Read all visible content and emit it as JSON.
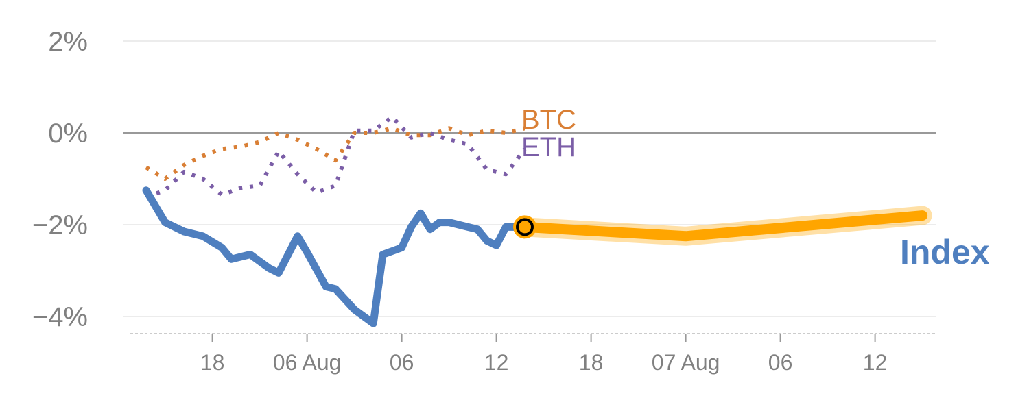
{
  "chart_data": {
    "type": "line",
    "title": "",
    "xlabel": "",
    "ylabel": "",
    "ylim": [
      -4.35,
      2.15
    ],
    "y_ticks": [
      {
        "value": 2,
        "label": "2%"
      },
      {
        "value": 0,
        "label": "0%"
      },
      {
        "value": -2,
        "label": "−2%"
      },
      {
        "value": -4,
        "label": "−4%"
      }
    ],
    "x_ticks": [
      {
        "x": 7,
        "label": "18"
      },
      {
        "x": 17,
        "label": "06 Aug"
      },
      {
        "x": 27,
        "label": "06"
      },
      {
        "x": 37,
        "label": "12"
      },
      {
        "x": 47,
        "label": "18"
      },
      {
        "x": 57,
        "label": "07 Aug"
      },
      {
        "x": 67,
        "label": "06"
      },
      {
        "x": 77,
        "label": "12"
      }
    ],
    "series": [
      {
        "name": "BTC",
        "label": "BTC",
        "color": "#d97f35",
        "style": "dotted",
        "x": [
          0,
          2,
          4,
          6,
          8,
          10,
          12,
          14,
          16,
          18,
          20,
          22,
          24,
          26,
          28,
          30,
          32,
          34,
          36,
          38,
          40
        ],
        "y": [
          -0.75,
          -1.0,
          -0.7,
          -0.5,
          -0.35,
          -0.3,
          -0.2,
          0.0,
          -0.15,
          -0.35,
          -0.6,
          0.0,
          0.0,
          0.1,
          -0.05,
          -0.05,
          0.1,
          -0.05,
          0.05,
          0.0,
          0.1
        ]
      },
      {
        "name": "ETH",
        "label": "ETH",
        "color": "#7b5ea7",
        "style": "dotted",
        "x": [
          0,
          2,
          4,
          6,
          8,
          10,
          12,
          14,
          16,
          18,
          20,
          22,
          24,
          26,
          28,
          30,
          32,
          34,
          36,
          38,
          40
        ],
        "y": [
          -1.4,
          -1.25,
          -0.85,
          -1.0,
          -1.35,
          -1.2,
          -1.15,
          -0.4,
          -0.9,
          -1.3,
          -1.15,
          0.05,
          0.05,
          0.35,
          -0.1,
          0.0,
          -0.15,
          -0.25,
          -0.8,
          -0.9,
          -0.35
        ]
      },
      {
        "name": "Index",
        "label": "Index",
        "color": "#4f7fbf",
        "style": "solid",
        "x": [
          0,
          2,
          4,
          6,
          8,
          9,
          11,
          13,
          14,
          16,
          17,
          19,
          20,
          22,
          24,
          25,
          27,
          28,
          29,
          30,
          31,
          32,
          34,
          35,
          36,
          37,
          38,
          39,
          40
        ],
        "y": [
          -1.25,
          -1.95,
          -2.15,
          -2.25,
          -2.5,
          -2.75,
          -2.65,
          -2.95,
          -3.05,
          -2.25,
          -2.6,
          -3.35,
          -3.4,
          -3.85,
          -4.15,
          -2.65,
          -2.5,
          -2.05,
          -1.75,
          -2.1,
          -1.95,
          -1.95,
          -2.05,
          -2.1,
          -2.35,
          -2.45,
          -2.05,
          -2.05,
          -2.05
        ]
      },
      {
        "name": "Index projection",
        "color": "#ffa500",
        "style": "solid-thick",
        "x": [
          40,
          57,
          82
        ],
        "y": [
          -2.05,
          -2.25,
          -1.8
        ]
      }
    ],
    "marker": {
      "name": "current-point",
      "x": 40,
      "y": -2.05,
      "fill": "#ffa500",
      "stroke": "#000000"
    }
  }
}
